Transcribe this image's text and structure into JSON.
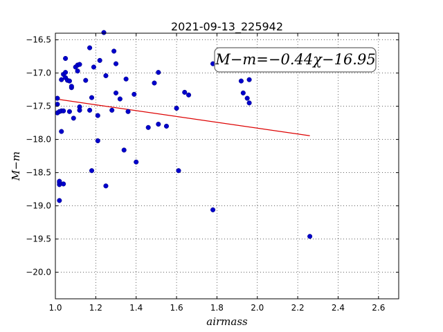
{
  "chart_data": {
    "type": "scatter",
    "title": "2021-09-13_225942",
    "xlabel": "airmass",
    "ylabel": "M−m",
    "xlim": [
      1.0,
      2.7
    ],
    "ylim": [
      -16.4,
      -20.4
    ],
    "y_inverted": true,
    "grid": true,
    "grid_style": "dotted",
    "xticks": [
      1.0,
      1.2,
      1.4,
      1.6,
      1.8,
      2.0,
      2.2,
      2.4,
      2.6
    ],
    "xtick_labels": [
      "1.0",
      "1.2",
      "1.4",
      "1.6",
      "1.8",
      "2.0",
      "2.2",
      "2.4",
      "2.6"
    ],
    "yticks": [
      -16.5,
      -17.0,
      -17.5,
      -18.0,
      -18.5,
      -19.0,
      -19.5,
      -20.0
    ],
    "ytick_labels": [
      "−16.5",
      "−17.0",
      "−17.5",
      "−18.0",
      "−18.5",
      "−19.0",
      "−19.5",
      "−20.0"
    ],
    "annotation": "M−m=−0.44χ−16.95",
    "marker_color": "#0000cc",
    "fit_color": "#dd0000",
    "fit_line": {
      "slope": -0.44,
      "intercept": -16.95,
      "x_range": [
        1.0,
        2.26
      ]
    },
    "x": [
      1.01,
      1.01,
      1.01,
      1.02,
      1.02,
      1.02,
      1.02,
      1.02,
      1.03,
      1.03,
      1.03,
      1.04,
      1.04,
      1.04,
      1.05,
      1.05,
      1.05,
      1.06,
      1.07,
      1.07,
      1.08,
      1.08,
      1.09,
      1.1,
      1.11,
      1.11,
      1.12,
      1.12,
      1.12,
      1.15,
      1.17,
      1.17,
      1.18,
      1.18,
      1.19,
      1.21,
      1.21,
      1.22,
      1.24,
      1.25,
      1.25,
      1.28,
      1.29,
      1.3,
      1.3,
      1.32,
      1.34,
      1.35,
      1.36,
      1.39,
      1.4,
      1.46,
      1.49,
      1.51,
      1.51,
      1.55,
      1.6,
      1.61,
      1.64,
      1.66,
      1.78,
      1.78,
      1.92,
      1.93,
      1.95,
      1.96,
      1.96,
      2.26
    ],
    "y": [
      -17.38,
      -17.47,
      -17.6,
      -17.58,
      -18.68,
      -18.92,
      -18.65,
      -18.63,
      -17.88,
      -17.1,
      -17.57,
      -17.02,
      -17.57,
      -18.67,
      -16.78,
      -16.99,
      -17.07,
      -17.11,
      -17.58,
      -17.12,
      -17.22,
      -17.2,
      -17.68,
      -16.91,
      -16.97,
      -16.88,
      -17.51,
      -16.87,
      -17.56,
      -17.11,
      -17.56,
      -16.62,
      -17.37,
      -18.47,
      -16.91,
      -17.64,
      -18.02,
      -16.81,
      -16.39,
      -17.04,
      -18.7,
      -17.56,
      -16.67,
      -17.3,
      -16.86,
      -17.39,
      -18.16,
      -17.09,
      -17.58,
      -17.32,
      -18.34,
      -17.82,
      -17.15,
      -16.99,
      -17.77,
      -17.8,
      -17.53,
      -18.47,
      -17.29,
      -17.33,
      -16.86,
      -19.06,
      -17.12,
      -17.3,
      -17.38,
      -17.45,
      -17.1,
      -19.46
    ]
  }
}
